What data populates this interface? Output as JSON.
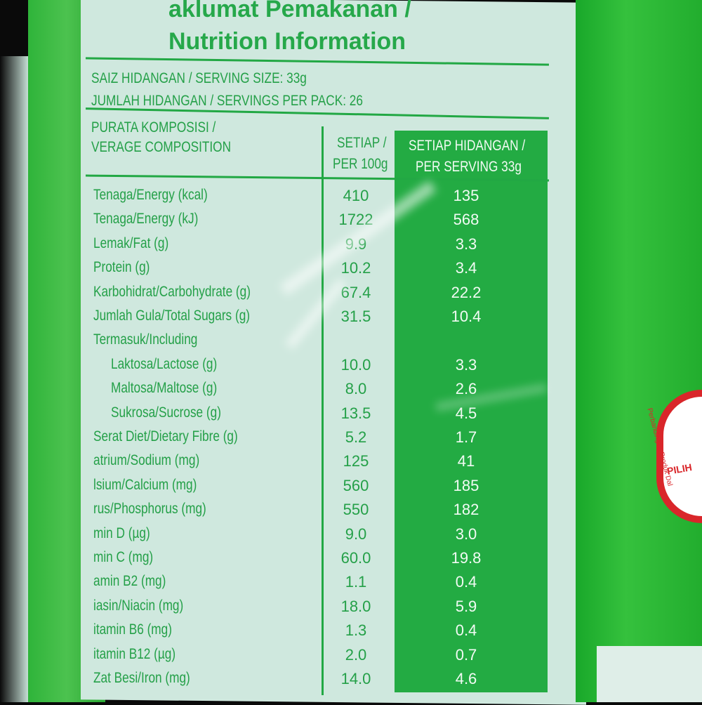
{
  "label": {
    "title_line1": "aklumat Pemakanan /",
    "title_line2": "Nutrition Information",
    "serving_size": "SAIZ HIDANGAN / SERVING SIZE: 33g",
    "servings_per_pack": "JUMLAH HIDANGAN / SERVINGS PER PACK: 26",
    "header_composition_1": "PURATA KOMPOSISI /",
    "header_composition_2": "VERAGE COMPOSITION",
    "header_per100_1": "SETIAP /",
    "header_per100_2": "PER 100g",
    "header_serving_1": "SETIAP HIDANGAN /",
    "header_serving_2": "PER SERVING 33g",
    "rows": [
      {
        "name": "Tenaga/Energy (kcal)",
        "per100": "410",
        "serving": "135",
        "indent": false
      },
      {
        "name": "Tenaga/Energy (kJ)",
        "per100": "1722",
        "serving": "568",
        "indent": false
      },
      {
        "name": "Lemak/Fat (g)",
        "per100": "9.9",
        "serving": "3.3",
        "indent": false
      },
      {
        "name": "Protein (g)",
        "per100": "10.2",
        "serving": "3.4",
        "indent": false
      },
      {
        "name": "Karbohidrat/Carbohydrate (g)",
        "per100": "67.4",
        "serving": "22.2",
        "indent": false
      },
      {
        "name": "Jumlah Gula/Total Sugars (g)",
        "per100": "31.5",
        "serving": "10.4",
        "indent": false
      },
      {
        "name": "Termasuk/Including",
        "per100": "",
        "serving": "",
        "indent": false
      },
      {
        "name": "Laktosa/Lactose (g)",
        "per100": "10.0",
        "serving": "3.3",
        "indent": true
      },
      {
        "name": "Maltosa/Maltose (g)",
        "per100": "8.0",
        "serving": "2.6",
        "indent": true
      },
      {
        "name": "Sukrosa/Sucrose (g)",
        "per100": "13.5",
        "serving": "4.5",
        "indent": true
      },
      {
        "name": "Serat Diet/Dietary Fibre (g)",
        "per100": "5.2",
        "serving": "1.7",
        "indent": false
      },
      {
        "name": "atrium/Sodium (mg)",
        "per100": "125",
        "serving": "41",
        "indent": false
      },
      {
        "name": "lsium/Calcium (mg)",
        "per100": "560",
        "serving": "185",
        "indent": false
      },
      {
        "name": "rus/Phosphorus (mg)",
        "per100": "550",
        "serving": "182",
        "indent": false
      },
      {
        "name": "min D (µg)",
        "per100": "9.0",
        "serving": "3.0",
        "indent": false
      },
      {
        "name": "min C (mg)",
        "per100": "60.0",
        "serving": "19.8",
        "indent": false
      },
      {
        "name": "amin B2 (mg)",
        "per100": "1.1",
        "serving": "0.4",
        "indent": false
      },
      {
        "name": "iasin/Niacin (mg)",
        "per100": "18.0",
        "serving": "5.9",
        "indent": false
      },
      {
        "name": "itamin B6 (mg)",
        "per100": "1.3",
        "serving": "0.4",
        "indent": false
      },
      {
        "name": "itamin B12 (µg)",
        "per100": "2.0",
        "serving": "0.7",
        "indent": false
      },
      {
        "name": "Zat Besi/Iron (mg)",
        "per100": "14.0",
        "serving": "4.6",
        "indent": false
      }
    ]
  },
  "badge": {
    "text": "PILIH",
    "small": "Perbandingan Produk Dal"
  },
  "colors": {
    "label_green": "#24a048",
    "panel": "#cfe8de",
    "badge_red": "#d9262a"
  }
}
